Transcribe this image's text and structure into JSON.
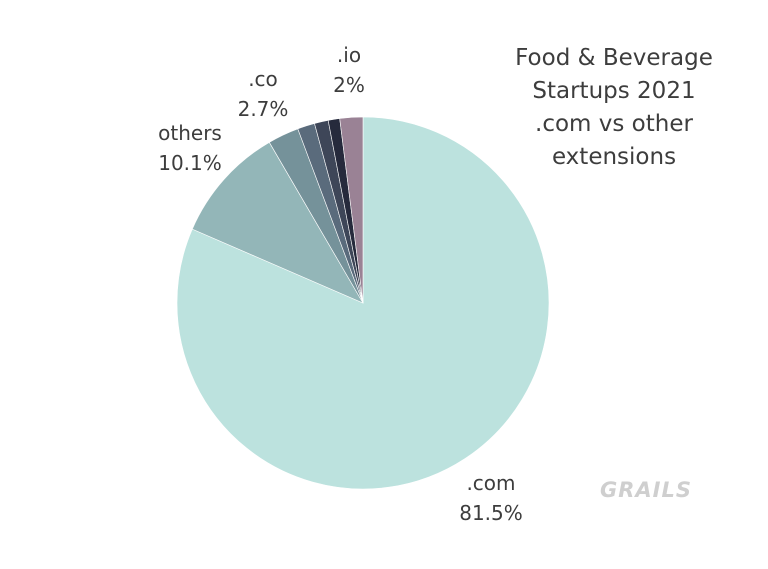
{
  "chart_data": {
    "type": "pie",
    "title_lines": [
      "Food & Beverage",
      "Startups 2021",
      ".com vs other",
      "extensions"
    ],
    "slices": [
      {
        "label": ".com",
        "value": 81.5,
        "display": "81.5%",
        "color": "#bce2de"
      },
      {
        "label": "others",
        "value": 10.1,
        "display": "10.1%",
        "color": "#93b6b8"
      },
      {
        "label": ".co",
        "value": 2.7,
        "display": "2.7%",
        "color": "#75929a"
      },
      {
        "label": "",
        "value": 1.5,
        "display": "",
        "color": "#5a6b7c"
      },
      {
        "label": "",
        "value": 1.2,
        "display": "",
        "color": "#3e4658"
      },
      {
        "label": "",
        "value": 1.0,
        "display": "",
        "color": "#262a3c"
      },
      {
        "label": ".io",
        "value": 2.0,
        "display": "2%",
        "color": "#9a8295"
      }
    ],
    "start_at": "12 o'clock",
    "direction": "clockwise, ending with .io"
  },
  "watermark": "GRAILS"
}
